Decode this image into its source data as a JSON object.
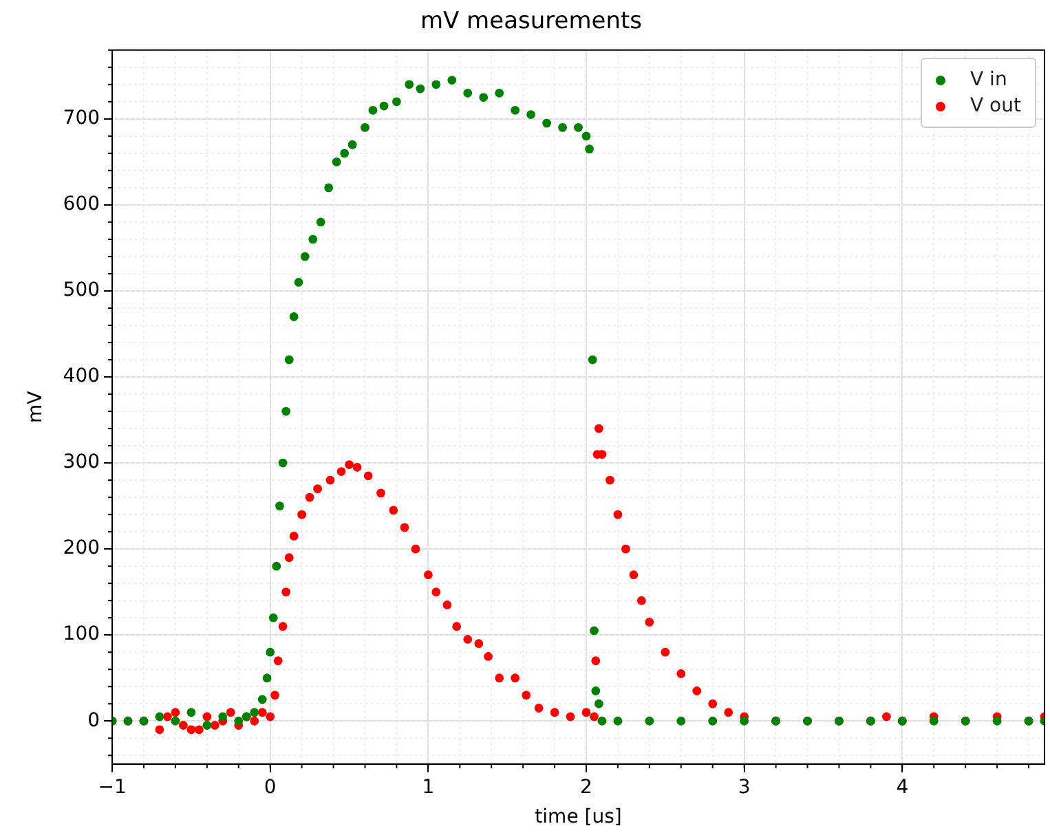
{
  "chart_data": {
    "type": "scatter",
    "title": "mV measurements",
    "xlabel": "time [us]",
    "ylabel": "mV",
    "xlim": [
      -1,
      4.9
    ],
    "xticks": [
      -1,
      0,
      1,
      2,
      3,
      4
    ],
    "ylim": [
      -50,
      780
    ],
    "yticks": [
      0,
      100,
      200,
      300,
      400,
      500,
      600,
      700
    ],
    "grid": true,
    "legend": "top right",
    "marker": "circle",
    "series": [
      {
        "name": "V in",
        "color": "#008000",
        "x": [
          -1,
          -0.9,
          -0.8,
          -0.7,
          -0.6,
          -0.5,
          -0.4,
          -0.3,
          -0.2,
          -0.15,
          -0.1,
          -0.05,
          -0.02,
          0,
          0.02,
          0.04,
          0.06,
          0.08,
          0.1,
          0.12,
          0.15,
          0.18,
          0.22,
          0.27,
          0.32,
          0.37,
          0.42,
          0.47,
          0.52,
          0.6,
          0.65,
          0.72,
          0.8,
          0.88,
          0.95,
          1.05,
          1.15,
          1.25,
          1.35,
          1.45,
          1.55,
          1.65,
          1.75,
          1.85,
          1.95,
          2,
          2.02,
          2.04,
          2.05,
          2.06,
          2.08,
          2.1,
          2.2,
          2.4,
          2.6,
          2.8,
          3,
          3.2,
          3.4,
          3.6,
          3.8,
          4,
          4.2,
          4.4,
          4.6,
          4.8,
          4.9
        ],
        "values": [
          0,
          0,
          0,
          5,
          0,
          10,
          -5,
          5,
          0,
          5,
          10,
          25,
          50,
          80,
          120,
          180,
          250,
          300,
          360,
          420,
          470,
          510,
          540,
          560,
          580,
          620,
          650,
          660,
          670,
          690,
          710,
          715,
          720,
          740,
          735,
          740,
          745,
          730,
          725,
          730,
          710,
          705,
          695,
          690,
          690,
          680,
          665,
          420,
          105,
          35,
          20,
          0,
          0,
          0,
          0,
          0,
          0,
          0,
          0,
          0,
          0,
          0,
          0,
          0,
          0,
          0,
          0
        ]
      },
      {
        "name": "V out",
        "color": "#ff0000",
        "x": [
          -1,
          -0.9,
          -0.8,
          -0.7,
          -0.65,
          -0.6,
          -0.55,
          -0.5,
          -0.45,
          -0.4,
          -0.35,
          -0.3,
          -0.25,
          -0.2,
          -0.15,
          -0.1,
          -0.05,
          0,
          0.03,
          0.05,
          0.08,
          0.1,
          0.12,
          0.15,
          0.2,
          0.25,
          0.3,
          0.38,
          0.45,
          0.5,
          0.55,
          0.62,
          0.7,
          0.78,
          0.85,
          0.92,
          1,
          1.05,
          1.12,
          1.18,
          1.25,
          1.32,
          1.38,
          1.45,
          1.55,
          1.62,
          1.7,
          1.8,
          1.9,
          2,
          2.05,
          2.06,
          2.07,
          2.08,
          2.1,
          2.15,
          2.2,
          2.25,
          2.3,
          2.35,
          2.4,
          2.5,
          2.6,
          2.7,
          2.8,
          2.9,
          3,
          3.2,
          3.4,
          3.6,
          3.8,
          3.9,
          4,
          4.2,
          4.4,
          4.6,
          4.8,
          4.9
        ],
        "values": [
          0,
          0,
          0,
          -10,
          5,
          10,
          -5,
          -10,
          -10,
          5,
          -5,
          0,
          10,
          -5,
          5,
          0,
          10,
          5,
          30,
          70,
          110,
          150,
          190,
          215,
          240,
          260,
          270,
          280,
          290,
          298,
          295,
          285,
          265,
          245,
          225,
          200,
          170,
          150,
          135,
          110,
          95,
          90,
          75,
          50,
          50,
          30,
          15,
          10,
          5,
          10,
          5,
          70,
          310,
          340,
          310,
          280,
          240,
          200,
          170,
          140,
          115,
          80,
          55,
          35,
          20,
          10,
          5,
          0,
          0,
          0,
          0,
          5,
          0,
          5,
          0,
          5,
          0,
          5
        ]
      }
    ]
  }
}
